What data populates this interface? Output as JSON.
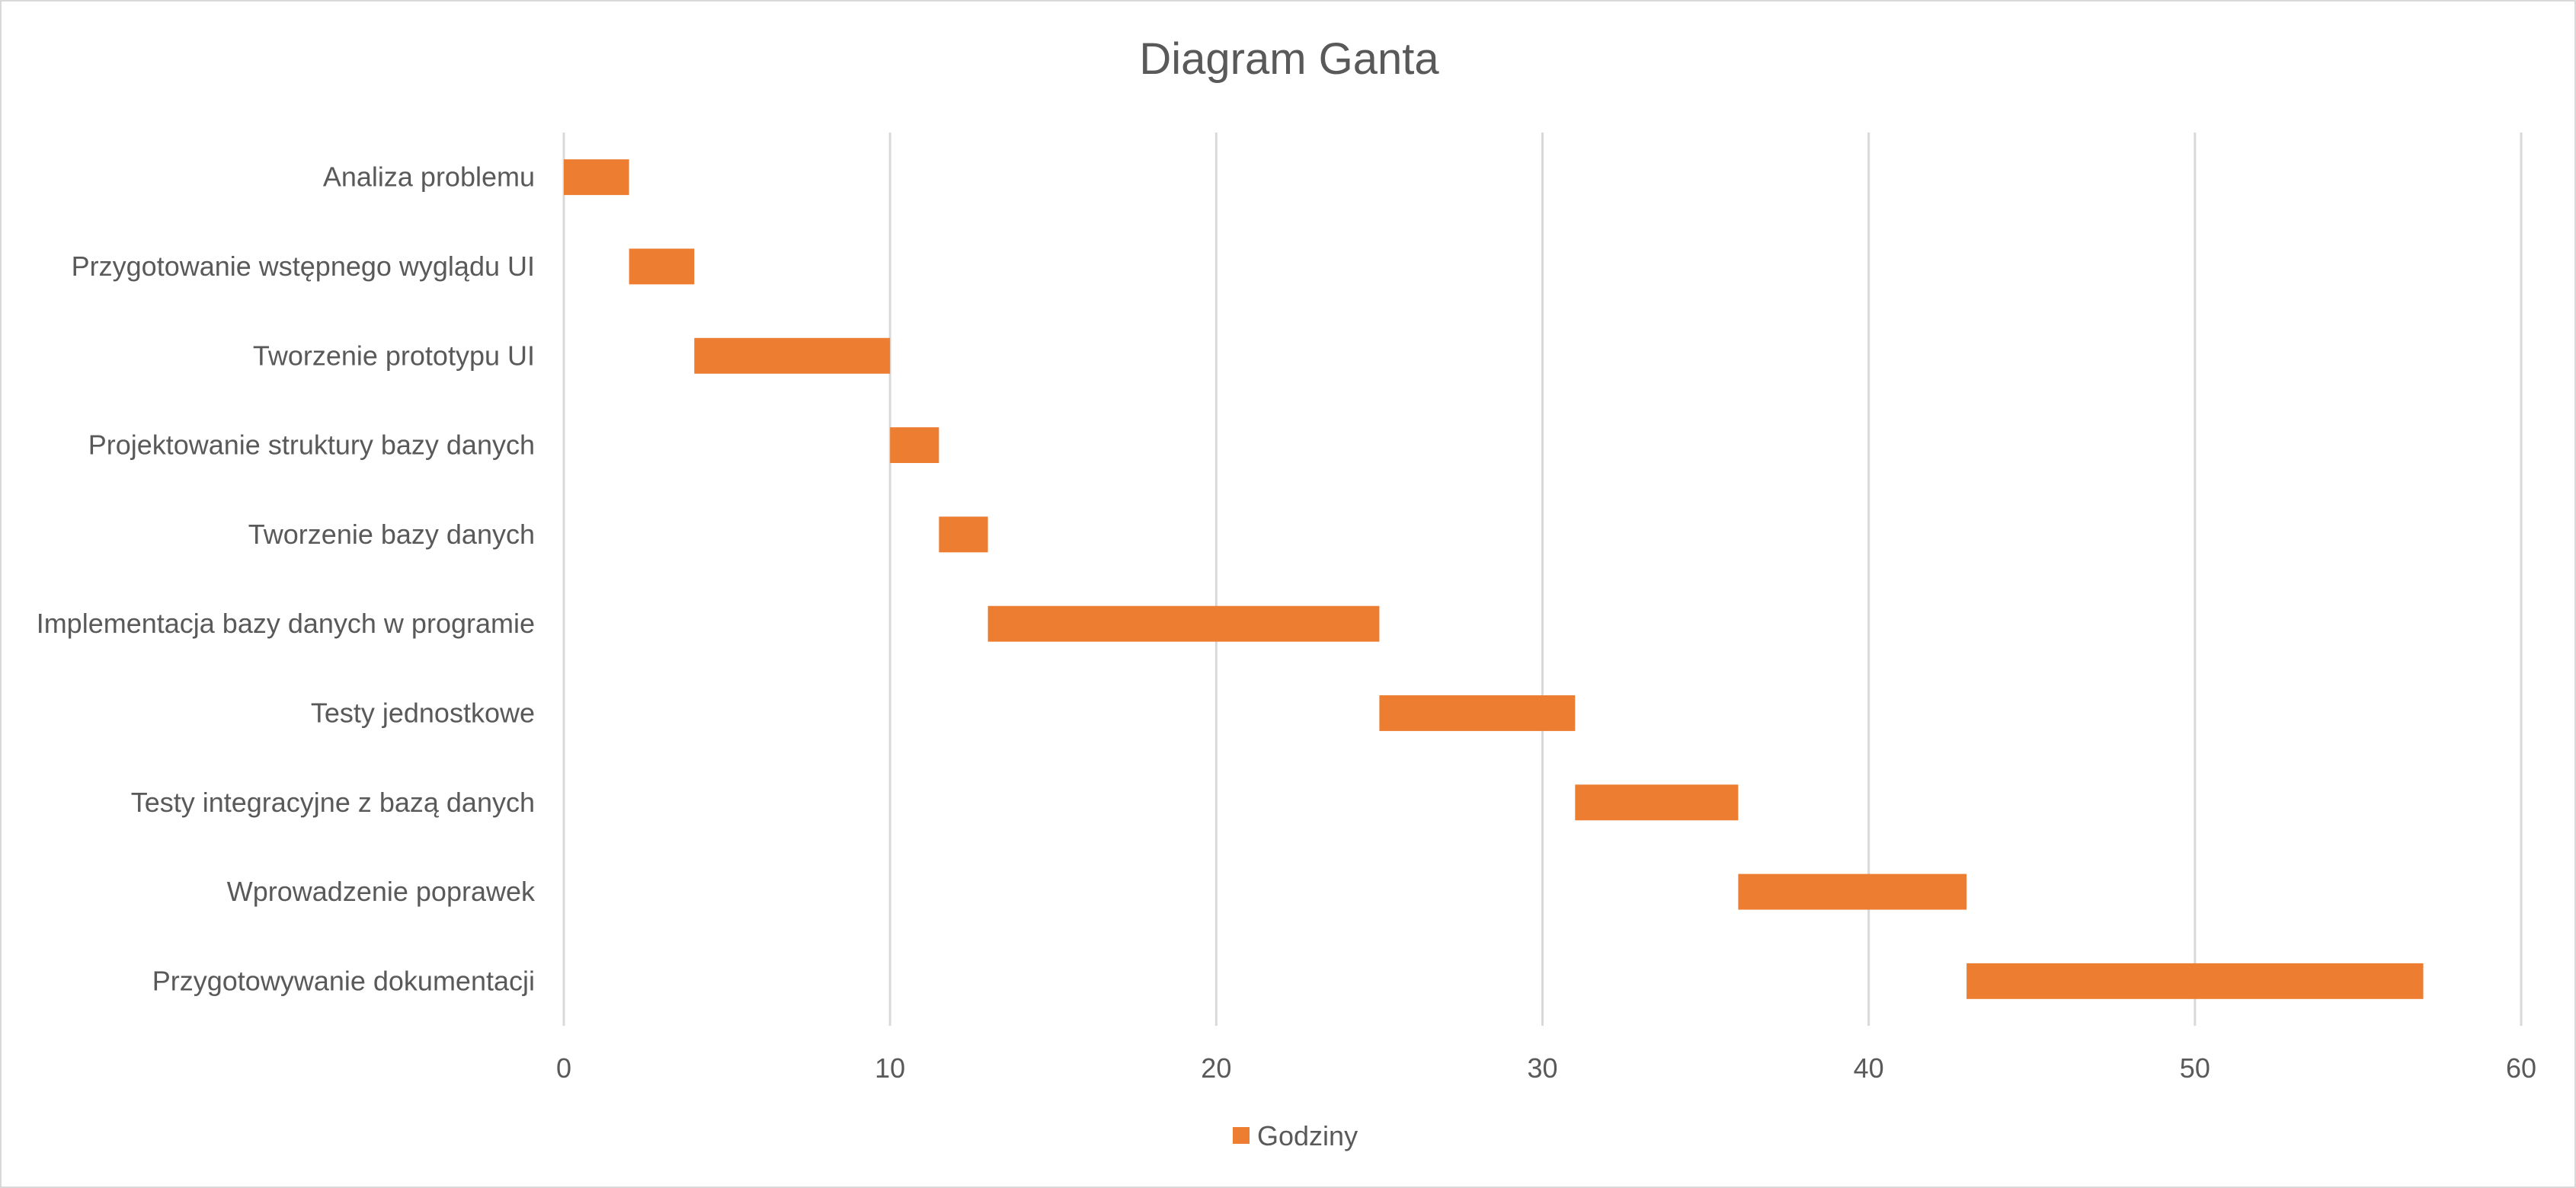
{
  "chart_data": {
    "type": "bar",
    "orientation": "horizontal",
    "stacked": true,
    "title": "Diagram Ganta",
    "xlabel": "",
    "ylabel": "",
    "xlim": [
      0,
      60
    ],
    "x_ticks": [
      0,
      10,
      20,
      30,
      40,
      50,
      60
    ],
    "grid": true,
    "legend_position": "bottom",
    "categories": [
      "Analiza problemu",
      "Przygotowanie wstępnego wyglądu UI",
      "Tworzenie prototypu UI",
      "Projektowanie struktury bazy danych",
      "Tworzenie bazy danych",
      "Implementacja bazy danych w programie",
      "Testy jednostkowe",
      "Testy integracyjne z bazą danych",
      "Wprowadzenie poprawek",
      "Przygotowywanie dokumentacji"
    ],
    "series": [
      {
        "role": "start",
        "visible": false,
        "values": [
          0,
          2,
          4,
          10,
          11.5,
          13,
          25,
          31,
          36,
          43
        ]
      },
      {
        "name": "Godziny",
        "visible": true,
        "color": "#ED7D31",
        "values": [
          2,
          2,
          6,
          1.5,
          1.5,
          12,
          6,
          5,
          7,
          14
        ]
      }
    ]
  }
}
